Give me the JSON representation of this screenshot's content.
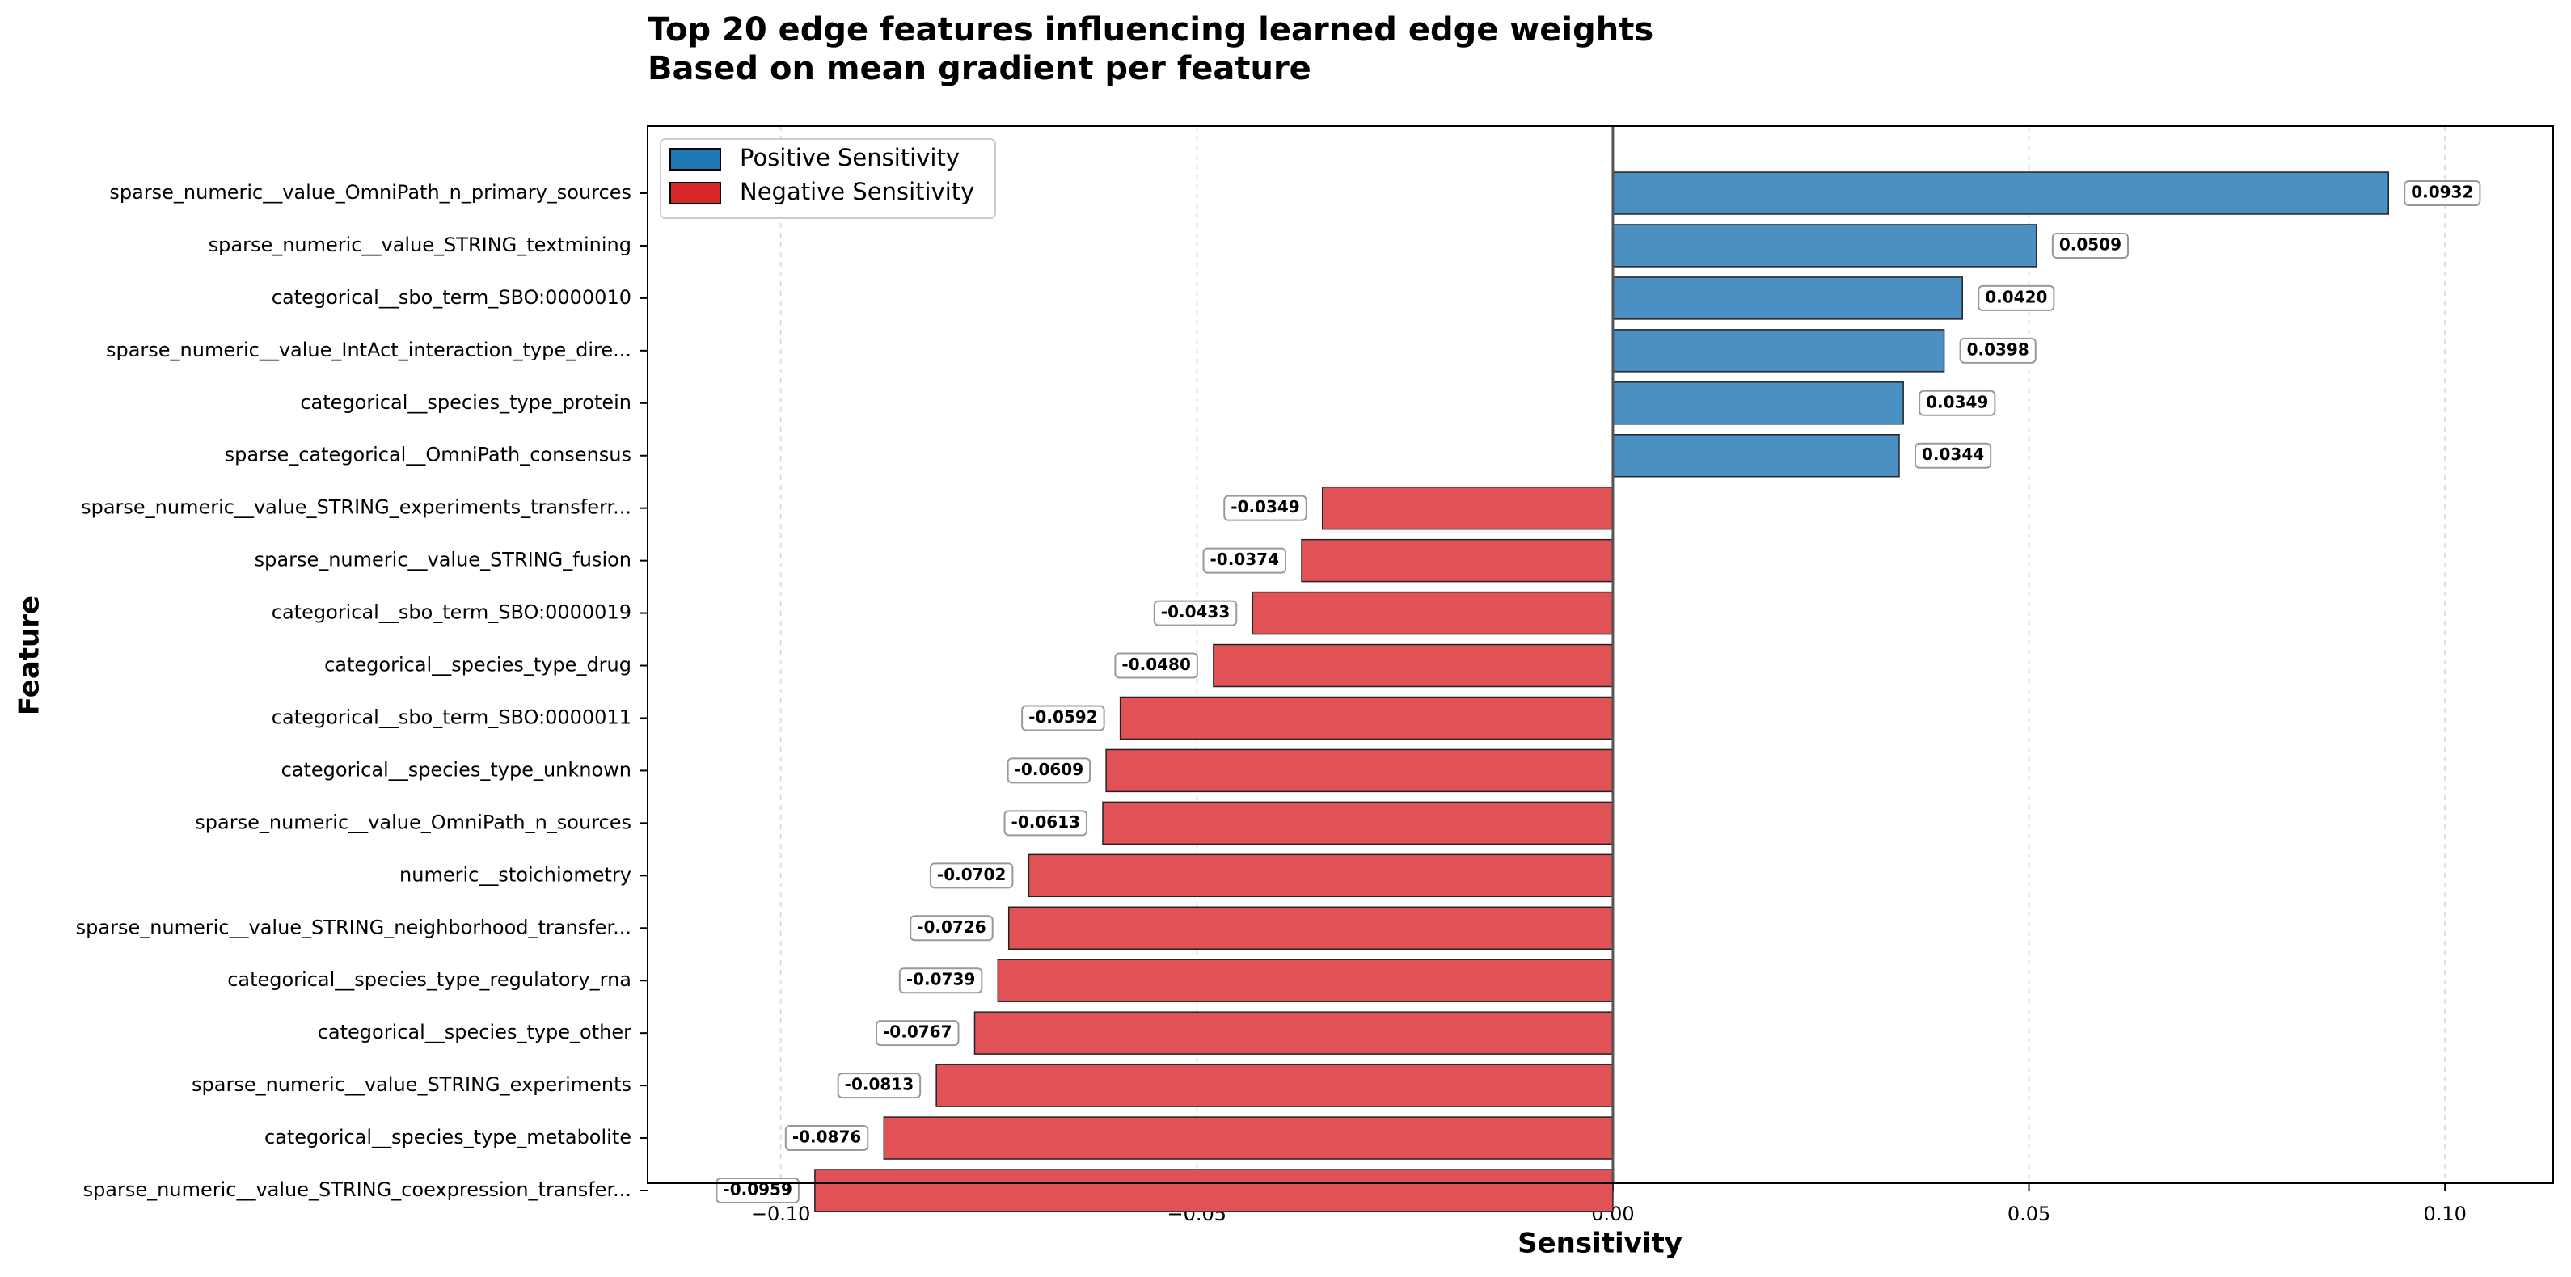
{
  "chart_data": {
    "type": "hbar",
    "title": "Top 20 edge features influencing learned edge weights",
    "subtitle": "Based on mean gradient per feature",
    "x_label": "Sensitivity",
    "y_label": "Feature",
    "categories": [
      "sparse_numeric__value_OmniPath_n_primary_sources",
      "sparse_numeric__value_STRING_textmining",
      "categorical__sbo_term_SBO:0000010",
      "sparse_numeric__value_IntAct_interaction_type_dire...",
      "categorical__species_type_protein",
      "sparse_categorical__OmniPath_consensus",
      "sparse_numeric__value_STRING_experiments_transferr...",
      "sparse_numeric__value_STRING_fusion",
      "categorical__sbo_term_SBO:0000019",
      "categorical__species_type_drug",
      "categorical__sbo_term_SBO:0000011",
      "categorical__species_type_unknown",
      "sparse_numeric__value_OmniPath_n_sources",
      "numeric__stoichiometry",
      "sparse_numeric__value_STRING_neighborhood_transfer...",
      "categorical__species_type_regulatory_rna",
      "categorical__species_type_other",
      "sparse_numeric__value_STRING_experiments",
      "categorical__species_type_metabolite",
      "sparse_numeric__value_STRING_coexpression_transfer..."
    ],
    "series": [
      {
        "name": "Positive Sensitivity",
        "color": "#4a90c2",
        "values": [
          0.0932,
          0.0509,
          0.042,
          0.0398,
          0.0349,
          0.0344,
          null,
          null,
          null,
          null,
          null,
          null,
          null,
          null,
          null,
          null,
          null,
          null,
          null,
          null
        ],
        "value_labels": [
          "0.0932",
          "0.0509",
          "0.0420",
          "0.0398",
          "0.0349",
          "0.0344",
          null,
          null,
          null,
          null,
          null,
          null,
          null,
          null,
          null,
          null,
          null,
          null,
          null,
          null
        ]
      },
      {
        "name": "Negative Sensitivity",
        "color": "#e05255",
        "values": [
          null,
          null,
          null,
          null,
          null,
          null,
          -0.0349,
          -0.0374,
          -0.0433,
          -0.048,
          -0.0592,
          -0.0609,
          -0.0613,
          -0.0702,
          -0.0726,
          -0.0739,
          -0.0767,
          -0.0813,
          -0.0876,
          -0.0959
        ],
        "value_labels": [
          null,
          null,
          null,
          null,
          null,
          null,
          "-0.0349",
          "-0.0374",
          "-0.0433",
          "-0.0480",
          "-0.0592",
          "-0.0609",
          "-0.0613",
          "-0.0702",
          "-0.0726",
          "-0.0739",
          "-0.0767",
          "-0.0813",
          "-0.0876",
          "-0.0959"
        ]
      }
    ],
    "xlim": [
      -0.116,
      0.113
    ],
    "xticks": [
      {
        "value": -0.1,
        "label": "−0.10"
      },
      {
        "value": -0.05,
        "label": "−0.05"
      },
      {
        "value": 0,
        "label": "0.00"
      },
      {
        "value": 0.05,
        "label": "0.05"
      },
      {
        "value": 0.1,
        "label": "0.10"
      }
    ],
    "grid": true,
    "legend": "upper left"
  }
}
